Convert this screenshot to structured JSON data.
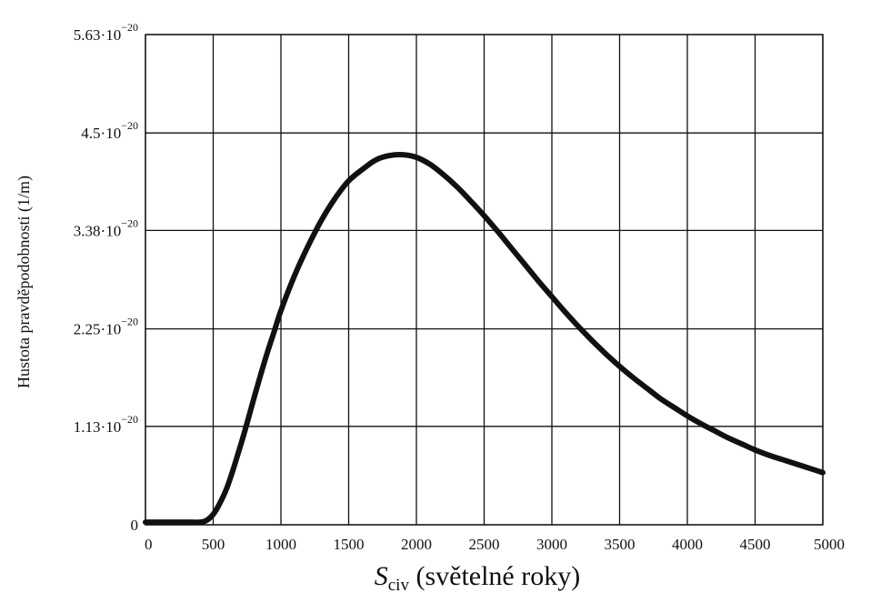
{
  "chart_data": {
    "type": "line",
    "title": "",
    "xlabel": {
      "symbol": "S",
      "subscript": "civ",
      "text": " (světelné roky)"
    },
    "ylabel": "Hustota pravděpodobnosti (1/m)",
    "xlim": [
      0,
      5000
    ],
    "ylim": [
      0,
      5.63e-20
    ],
    "grid": true,
    "x_ticks": [
      {
        "value": 0,
        "label": "0"
      },
      {
        "value": 500,
        "label": "500"
      },
      {
        "value": 1000,
        "label": "1000"
      },
      {
        "value": 1500,
        "label": "1500"
      },
      {
        "value": 2000,
        "label": "2000"
      },
      {
        "value": 2500,
        "label": "2500"
      },
      {
        "value": 3000,
        "label": "3000"
      },
      {
        "value": 3500,
        "label": "3500"
      },
      {
        "value": 4000,
        "label": "4000"
      },
      {
        "value": 4500,
        "label": "4500"
      },
      {
        "value": 5000,
        "label": "5000"
      }
    ],
    "y_ticks": [
      {
        "value": 0,
        "mantissa": "0",
        "exponent": ""
      },
      {
        "value": 1.13e-20,
        "mantissa": "1.13·10",
        "exponent": "−20"
      },
      {
        "value": 2.25e-20,
        "mantissa": "2.25·10",
        "exponent": "−20"
      },
      {
        "value": 3.38e-20,
        "mantissa": "3.38·10",
        "exponent": "−20"
      },
      {
        "value": 4.5e-20,
        "mantissa": "4.5·10",
        "exponent": "−20"
      },
      {
        "value": 5.63e-20,
        "mantissa": "5.63·10",
        "exponent": "−20"
      }
    ],
    "series": [
      {
        "color": "#111111",
        "x": [
          0,
          100,
          200,
          300,
          400,
          450,
          500,
          550,
          600,
          650,
          700,
          750,
          800,
          850,
          900,
          950,
          1000,
          1100,
          1200,
          1300,
          1400,
          1500,
          1600,
          1700,
          1800,
          1900,
          2000,
          2100,
          2200,
          2300,
          2400,
          2500,
          2600,
          2700,
          2800,
          2900,
          3000,
          3100,
          3200,
          3300,
          3400,
          3500,
          3600,
          3700,
          3800,
          3900,
          4000,
          4100,
          4200,
          4300,
          4400,
          4500,
          4600,
          4700,
          4800,
          4900,
          5000
        ],
        "y": [
          3e-22,
          3e-22,
          3e-22,
          3e-22,
          3e-22,
          5e-22,
          1.2e-21,
          2.5e-21,
          4.2e-21,
          6.5e-21,
          9e-21,
          1.17e-20,
          1.45e-20,
          1.72e-20,
          1.98e-20,
          2.22e-20,
          2.46e-20,
          2.86e-20,
          3.2e-20,
          3.5e-20,
          3.75e-20,
          3.95e-20,
          4.08e-20,
          4.19e-20,
          4.24e-20,
          4.25e-20,
          4.22e-20,
          4.14e-20,
          4.02e-20,
          3.88e-20,
          3.72e-20,
          3.55e-20,
          3.37e-20,
          3.18e-20,
          2.99e-20,
          2.8e-20,
          2.62e-20,
          2.44e-20,
          2.27e-20,
          2.11e-20,
          1.96e-20,
          1.82e-20,
          1.69e-20,
          1.57e-20,
          1.45e-20,
          1.35e-20,
          1.25e-20,
          1.16e-20,
          1.08e-20,
          1e-20,
          9.3e-21,
          8.6e-21,
          8e-21,
          7.5e-21,
          7e-21,
          6.5e-21,
          6e-21
        ]
      }
    ]
  }
}
